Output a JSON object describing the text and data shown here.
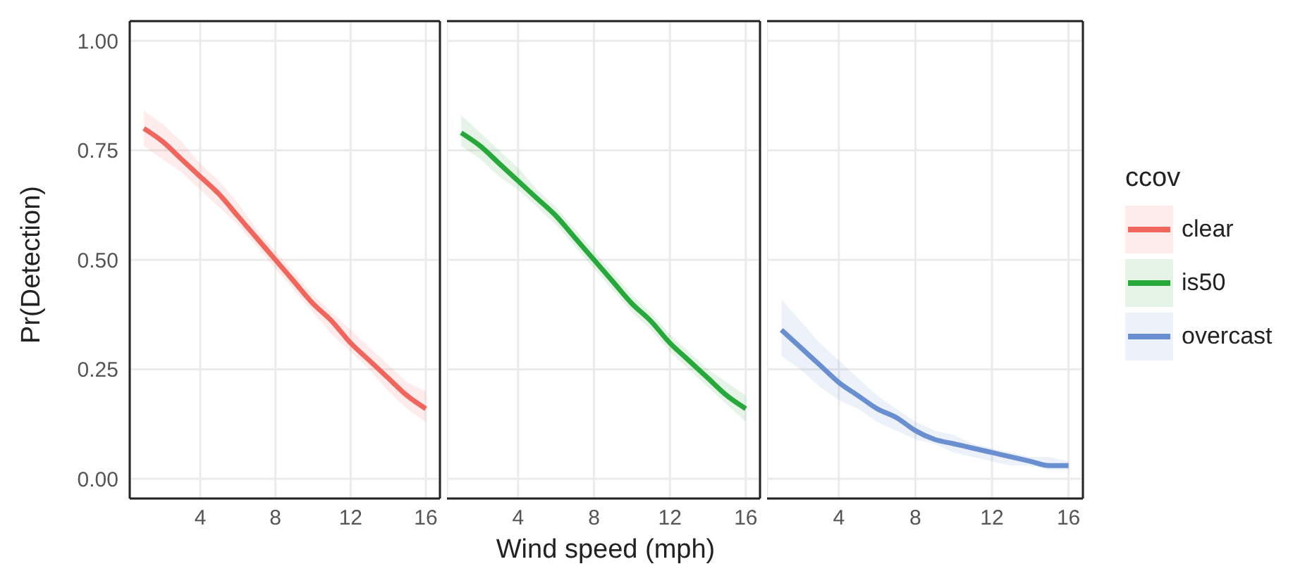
{
  "chart_data": [
    {
      "type": "line",
      "ylabel": "Pr(Detection)",
      "x": [
        1,
        2,
        3,
        4,
        5,
        6,
        7,
        8,
        9,
        10,
        11,
        12,
        13,
        14,
        15,
        16
      ],
      "xlim": [
        0.25,
        16.75
      ],
      "xticks": [
        4,
        8,
        12,
        16
      ],
      "ylim": [
        -0.045,
        1.045
      ],
      "yticks": [
        {
          "value": 0,
          "label": "0.00"
        },
        {
          "value": 0.25,
          "label": "0.25"
        },
        {
          "value": 0.5,
          "label": "0.50"
        },
        {
          "value": 0.75,
          "label": "0.75"
        },
        {
          "value": 1,
          "label": "1.00"
        }
      ],
      "grid": true,
      "series": [
        {
          "name": "clear",
          "color": "#f0665c",
          "values": [
            0.8,
            0.77,
            0.73,
            0.69,
            0.65,
            0.6,
            0.55,
            0.5,
            0.45,
            0.4,
            0.36,
            0.31,
            0.27,
            0.23,
            0.19,
            0.16
          ],
          "lower": [
            0.76,
            0.73,
            0.7,
            0.66,
            0.62,
            0.58,
            0.53,
            0.48,
            0.43,
            0.38,
            0.33,
            0.29,
            0.25,
            0.2,
            0.16,
            0.13
          ],
          "upper": [
            0.84,
            0.81,
            0.77,
            0.72,
            0.68,
            0.63,
            0.57,
            0.52,
            0.47,
            0.42,
            0.38,
            0.34,
            0.3,
            0.26,
            0.22,
            0.2
          ]
        }
      ]
    },
    {
      "type": "line",
      "xlabel": "Wind speed (mph)",
      "x": [
        1,
        2,
        3,
        4,
        5,
        6,
        7,
        8,
        9,
        10,
        11,
        12,
        13,
        14,
        15,
        16
      ],
      "xlim": [
        0.25,
        16.75
      ],
      "xticks": [
        4,
        8,
        12,
        16
      ],
      "ylim": [
        -0.045,
        1.045
      ],
      "yticks": [
        0,
        0.25,
        0.5,
        0.75,
        1
      ],
      "tick_labels": "x",
      "grid": true,
      "series": [
        {
          "name": "is50",
          "color": "#26a83a",
          "values": [
            0.79,
            0.76,
            0.72,
            0.68,
            0.64,
            0.6,
            0.55,
            0.5,
            0.45,
            0.4,
            0.36,
            0.31,
            0.27,
            0.23,
            0.19,
            0.16
          ],
          "lower": [
            0.76,
            0.73,
            0.69,
            0.66,
            0.62,
            0.58,
            0.53,
            0.48,
            0.43,
            0.38,
            0.34,
            0.29,
            0.25,
            0.21,
            0.17,
            0.13
          ],
          "upper": [
            0.83,
            0.79,
            0.75,
            0.71,
            0.66,
            0.62,
            0.57,
            0.52,
            0.47,
            0.42,
            0.38,
            0.33,
            0.29,
            0.25,
            0.22,
            0.19
          ]
        }
      ]
    },
    {
      "type": "line",
      "x": [
        1,
        2,
        3,
        4,
        5,
        6,
        7,
        8,
        9,
        10,
        11,
        12,
        13,
        14,
        15,
        16
      ],
      "xlim": [
        0.25,
        16.75
      ],
      "xticks": [
        4,
        8,
        12,
        16
      ],
      "ylim": [
        -0.045,
        1.045
      ],
      "yticks": [
        0,
        0.25,
        0.5,
        0.75,
        1
      ],
      "tick_labels": "x",
      "grid": true,
      "legend": "right",
      "legend_title": "ccov",
      "series": [
        {
          "name": "overcast",
          "color": "#6a8fd0",
          "values": [
            0.34,
            0.3,
            0.26,
            0.22,
            0.19,
            0.16,
            0.14,
            0.11,
            0.09,
            0.08,
            0.07,
            0.06,
            0.05,
            0.04,
            0.03,
            0.03
          ],
          "lower": [
            0.28,
            0.25,
            0.21,
            0.18,
            0.16,
            0.13,
            0.11,
            0.09,
            0.08,
            0.06,
            0.05,
            0.04,
            0.03,
            0.03,
            0.02,
            0.02
          ],
          "upper": [
            0.41,
            0.36,
            0.31,
            0.27,
            0.23,
            0.19,
            0.16,
            0.13,
            0.11,
            0.1,
            0.08,
            0.07,
            0.06,
            0.05,
            0.05,
            0.04
          ]
        }
      ]
    }
  ]
}
